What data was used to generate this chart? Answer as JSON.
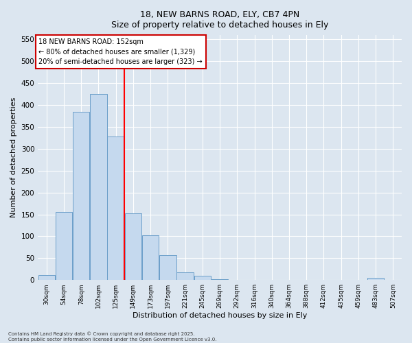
{
  "title_line1": "18, NEW BARNS ROAD, ELY, CB7 4PN",
  "title_line2": "Size of property relative to detached houses in Ely",
  "xlabel": "Distribution of detached houses by size in Ely",
  "ylabel": "Number of detached properties",
  "categories": [
    "30sqm",
    "54sqm",
    "78sqm",
    "102sqm",
    "125sqm",
    "149sqm",
    "173sqm",
    "197sqm",
    "221sqm",
    "245sqm",
    "269sqm",
    "292sqm",
    "316sqm",
    "340sqm",
    "364sqm",
    "388sqm",
    "412sqm",
    "435sqm",
    "459sqm",
    "483sqm",
    "507sqm"
  ],
  "values": [
    12,
    155,
    385,
    425,
    328,
    152,
    102,
    57,
    18,
    10,
    2,
    0,
    0,
    0,
    0,
    0,
    0,
    0,
    0,
    5,
    0
  ],
  "bar_color": "#c5d9ee",
  "bar_edge_color": "#6b9fc9",
  "background_color": "#dce6f0",
  "red_line_index": 4.5,
  "annotation_text": "18 NEW BARNS ROAD: 152sqm\n← 80% of detached houses are smaller (1,329)\n20% of semi-detached houses are larger (323) →",
  "annotation_box_color": "#ffffff",
  "annotation_border_color": "#cc0000",
  "ylim": [
    0,
    560
  ],
  "yticks": [
    0,
    50,
    100,
    150,
    200,
    250,
    300,
    350,
    400,
    450,
    500,
    550
  ],
  "footer_line1": "Contains HM Land Registry data © Crown copyright and database right 2025.",
  "footer_line2": "Contains public sector information licensed under the Open Government Licence v3.0."
}
